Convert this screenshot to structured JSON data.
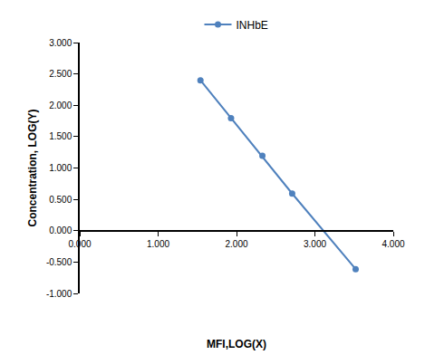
{
  "chart_data": {
    "type": "line",
    "x_label": "MFI,LOG(X)",
    "y_label": "Concentration, LOG(Y)",
    "x": [
      1.54,
      1.93,
      2.33,
      2.71,
      3.52
    ],
    "series": [
      {
        "name": "INHbE",
        "color": "#4f81bd",
        "marker": "circle",
        "line_style": "solid",
        "values": [
          2.398,
          1.796,
          1.194,
          0.592,
          -0.612
        ]
      }
    ],
    "xlim": [
      0,
      4
    ],
    "xticks": [
      {
        "value": 0,
        "label": "0.000"
      },
      {
        "value": 1,
        "label": "1.000"
      },
      {
        "value": 2,
        "label": "2.000"
      },
      {
        "value": 3,
        "label": "3.000"
      },
      {
        "value": 4,
        "label": "4.000"
      }
    ],
    "ylim": [
      -1,
      3
    ],
    "yticks": [
      {
        "value": -1,
        "label": "-1.000"
      },
      {
        "value": -0.5,
        "label": "-0.500"
      },
      {
        "value": 0,
        "label": "0.000"
      },
      {
        "value": 0.5,
        "label": "0.500"
      },
      {
        "value": 1,
        "label": "1.000"
      },
      {
        "value": 1.5,
        "label": "1.500"
      },
      {
        "value": 2,
        "label": "2.000"
      },
      {
        "value": 2.5,
        "label": "2.500"
      },
      {
        "value": 3,
        "label": "3.000"
      }
    ],
    "grid": false,
    "legend": "top"
  }
}
